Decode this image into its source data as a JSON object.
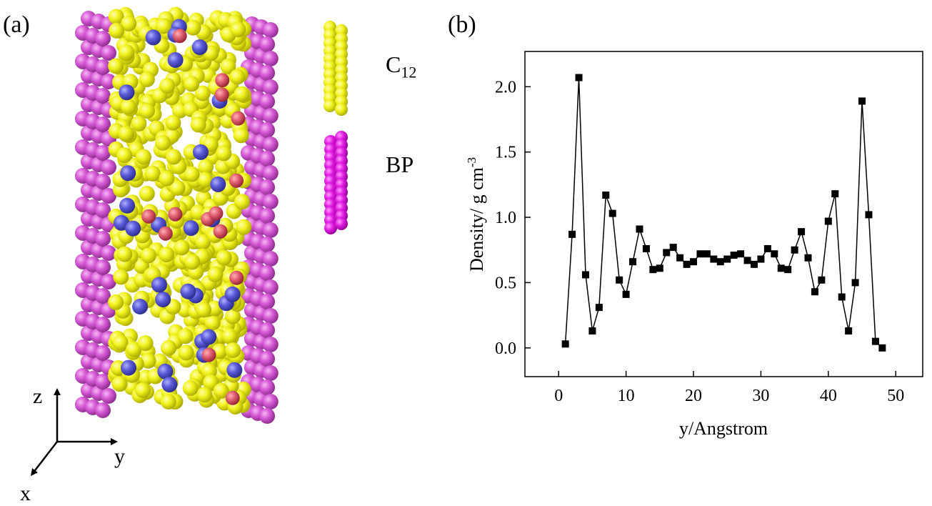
{
  "panel_a": {
    "label": "(a)",
    "legend": [
      {
        "name": "C",
        "subscript": "12",
        "color": "#f2f21e"
      },
      {
        "name": "BP",
        "color": "#e31ee3"
      }
    ],
    "axes_labels": {
      "z": "z",
      "y": "y",
      "x": "x"
    },
    "colors": {
      "chain": "#f2f21e",
      "wall": "#d65ad6",
      "nitrogen": "#5a5ad8",
      "oxygen": "#e06070"
    }
  },
  "panel_b": {
    "label": "(b)"
  },
  "chart_data": {
    "type": "line",
    "title": "",
    "xlabel": "y/Angstrom",
    "ylabel": "Density/ g cm",
    "ylabel_superscript": "-3",
    "xlim": [
      -5,
      54
    ],
    "ylim": [
      -0.22,
      2.27
    ],
    "xticks": [
      "0",
      "10",
      "20",
      "30",
      "40",
      "50"
    ],
    "yticks": [
      "0.0",
      "0.5",
      "1.0",
      "1.5",
      "2.0"
    ],
    "xtick_values": [
      0,
      10,
      20,
      30,
      40,
      50
    ],
    "ytick_values": [
      0.0,
      0.5,
      1.0,
      1.5,
      2.0
    ],
    "grid": false,
    "marker": "square",
    "series": [
      {
        "x": [
          1,
          2,
          3,
          4,
          5,
          6,
          7,
          8,
          9,
          10,
          11,
          12,
          13,
          14,
          15,
          16,
          17,
          18,
          19,
          20,
          21,
          22,
          23,
          24,
          25,
          26,
          27,
          28,
          29,
          30,
          31,
          32,
          33,
          34,
          35,
          36,
          37,
          38,
          39,
          40,
          41,
          42,
          43,
          44,
          45,
          46,
          47,
          48
        ],
        "values": [
          0.03,
          0.87,
          2.07,
          0.56,
          0.13,
          0.31,
          1.17,
          1.03,
          0.52,
          0.41,
          0.66,
          0.91,
          0.76,
          0.6,
          0.61,
          0.73,
          0.77,
          0.69,
          0.64,
          0.66,
          0.72,
          0.72,
          0.68,
          0.66,
          0.68,
          0.71,
          0.72,
          0.67,
          0.64,
          0.68,
          0.76,
          0.72,
          0.61,
          0.6,
          0.75,
          0.89,
          0.69,
          0.43,
          0.52,
          0.97,
          1.18,
          0.39,
          0.13,
          0.5,
          1.89,
          1.02,
          0.05,
          0.0
        ]
      }
    ]
  }
}
